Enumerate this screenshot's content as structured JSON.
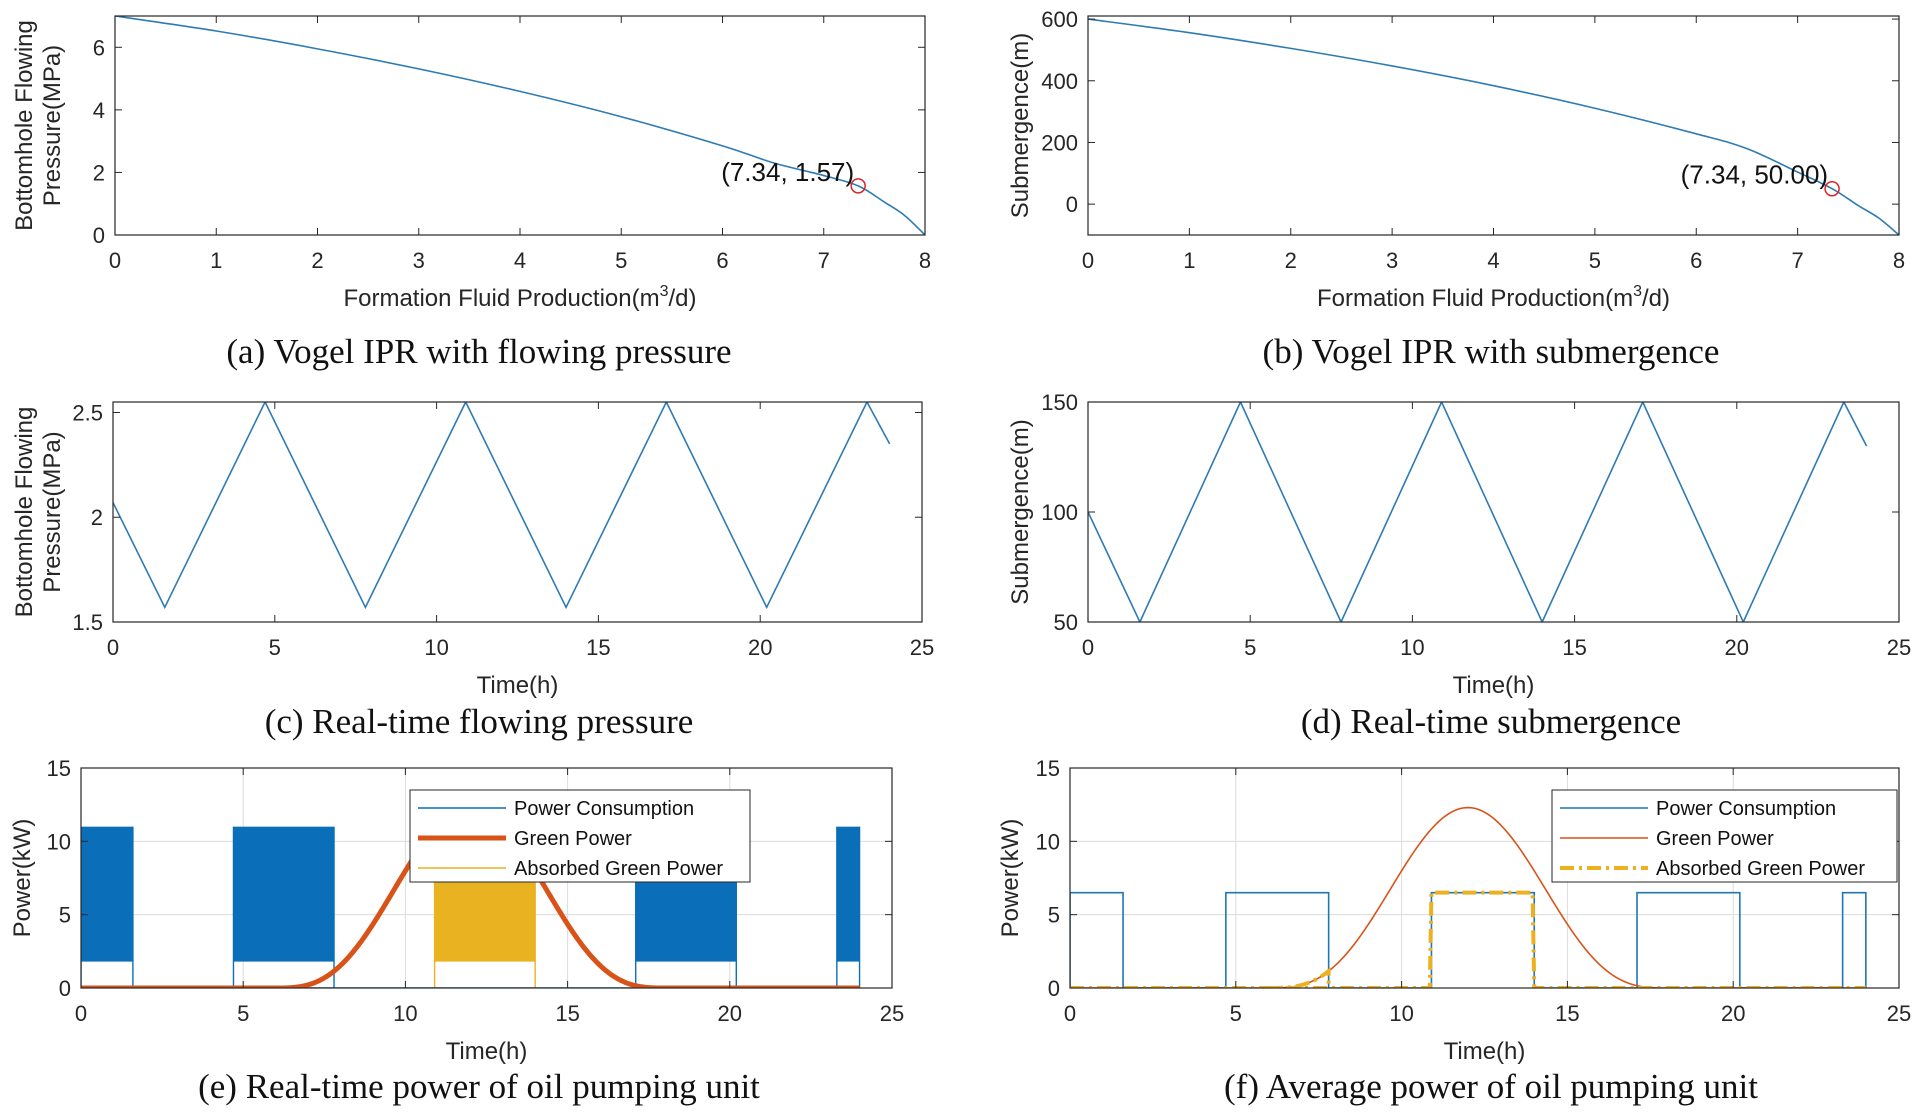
{
  "chart_data": [
    {
      "id": "a",
      "type": "line",
      "caption": "(a) Vogel IPR with flowing pressure",
      "xlabel": "Formation Fluid Production(m",
      "xlabel_sup": "3",
      "xlabel_end": "/d)",
      "ylabel": [
        "Bottomhole Flowing",
        "Pressure(MPa)"
      ],
      "xlim": [
        0,
        8
      ],
      "ylim": [
        0,
        7.0
      ],
      "xticks": [
        0,
        1,
        2,
        3,
        4,
        5,
        6,
        7,
        8
      ],
      "yticks": [
        0,
        2,
        4,
        6
      ],
      "grid": false,
      "color": "#2e7bb4",
      "series": [
        {
          "x": [
            0,
            1,
            2,
            3,
            4,
            5,
            6,
            6.5,
            7,
            7.34,
            7.6,
            7.8,
            8
          ],
          "y": [
            7.0,
            6.52,
            5.95,
            5.31,
            4.59,
            3.78,
            2.85,
            2.31,
            1.9,
            1.57,
            1.05,
            0.62,
            0
          ]
        }
      ],
      "marker": {
        "x": 7.34,
        "y": 1.57,
        "label": "(7.34, 1.57)"
      }
    },
    {
      "id": "b",
      "type": "line",
      "caption": "(b) Vogel IPR with submergence",
      "xlabel": "Formation Fluid Production(m",
      "xlabel_sup": "3",
      "xlabel_end": "/d)",
      "ylabel": [
        "Submergence(m)"
      ],
      "xlim": [
        0,
        8
      ],
      "ylim": [
        -100,
        610
      ],
      "xticks": [
        0,
        1,
        2,
        3,
        4,
        5,
        6,
        7,
        8
      ],
      "yticks": [
        0,
        200,
        400,
        600
      ],
      "grid": false,
      "color": "#2e7bb4",
      "series": [
        {
          "x": [
            0,
            1,
            2,
            3,
            4,
            5,
            6,
            6.5,
            7,
            7.34,
            7.6,
            7.8,
            8
          ],
          "y": [
            600,
            556,
            505,
            448,
            384,
            311,
            228,
            180,
            104,
            50,
            -5,
            -45,
            -100
          ]
        }
      ],
      "marker": {
        "x": 7.34,
        "y": 50.0,
        "label": "(7.34, 50.00)"
      }
    },
    {
      "id": "c",
      "type": "line",
      "caption": "(c) Real-time flowing pressure",
      "xlabel": "Time(h)",
      "ylabel": [
        "Bottomhole Flowing",
        "Pressure(MPa)"
      ],
      "xlim": [
        0,
        25
      ],
      "ylim": [
        1.5,
        2.55
      ],
      "xticks": [
        0,
        5,
        10,
        15,
        20,
        25
      ],
      "yticks": [
        1.5,
        2,
        2.5
      ],
      "grid": false,
      "color": "#2e7bb4",
      "series": [
        {
          "x": [
            0,
            1.6,
            4.7,
            7.8,
            10.9,
            14.0,
            17.1,
            20.2,
            23.3,
            24
          ],
          "y": [
            2.07,
            1.57,
            2.55,
            1.57,
            2.55,
            1.57,
            2.55,
            1.57,
            2.55,
            2.35
          ]
        }
      ]
    },
    {
      "id": "d",
      "type": "line",
      "caption": "(d) Real-time submergence",
      "xlabel": "Time(h)",
      "ylabel": [
        "Submergence(m)"
      ],
      "xlim": [
        0,
        25
      ],
      "ylim": [
        50,
        150
      ],
      "xticks": [
        0,
        5,
        10,
        15,
        20,
        25
      ],
      "yticks": [
        50,
        100,
        150
      ],
      "grid": false,
      "color": "#2e7bb4",
      "series": [
        {
          "x": [
            0,
            1.6,
            4.7,
            7.8,
            10.9,
            14.0,
            17.1,
            20.2,
            23.3,
            24
          ],
          "y": [
            100,
            50,
            150,
            50,
            150,
            50,
            150,
            50,
            150,
            130
          ]
        }
      ]
    },
    {
      "id": "e",
      "type": "area",
      "caption": "(e) Real-time power of oil pumping unit",
      "xlabel": "Time(h)",
      "ylabel": [
        "Power(kW)"
      ],
      "xlim": [
        0,
        25
      ],
      "ylim": [
        0,
        15
      ],
      "xticks": [
        0,
        5,
        10,
        15,
        20,
        25
      ],
      "yticks": [
        0,
        5,
        10,
        15
      ],
      "grid": true,
      "legend": [
        "Power Consumption",
        "Green Power",
        "Absorbed Green Power"
      ],
      "legend_position": "top-right",
      "power_on_intervals": [
        [
          0,
          1.6
        ],
        [
          4.7,
          7.8
        ],
        [
          10.9,
          14.0
        ],
        [
          17.1,
          20.2
        ],
        [
          23.3,
          24
        ]
      ],
      "power_band": [
        1.8,
        11.0
      ],
      "green_power": {
        "peak": 12.3,
        "center": 12,
        "start": 6,
        "end": 18,
        "x_end": 24
      },
      "absorbed_intervals": [
        [
          10.9,
          14.0
        ]
      ],
      "colors": {
        "consumption": "#0a6fb8",
        "green": "#d95319",
        "absorbed": "#e9b221"
      }
    },
    {
      "id": "f",
      "type": "line",
      "caption": "(f) Average power of oil pumping unit",
      "xlabel": "Time(h)",
      "ylabel": [
        "Power(kW)"
      ],
      "xlim": [
        0,
        25
      ],
      "ylim": [
        0,
        15
      ],
      "xticks": [
        0,
        5,
        10,
        15,
        20,
        25
      ],
      "yticks": [
        0,
        5,
        10,
        15
      ],
      "grid": true,
      "legend": [
        "Power Consumption",
        "Green Power",
        "Absorbed Green Power"
      ],
      "legend_position": "top-right",
      "power_on_intervals": [
        [
          0,
          1.6
        ],
        [
          4.7,
          7.8
        ],
        [
          10.9,
          14.0
        ],
        [
          17.1,
          20.2
        ],
        [
          23.3,
          24
        ]
      ],
      "average_power": 6.5,
      "green_power": {
        "peak": 12.3,
        "center": 12,
        "start": 6,
        "end": 18,
        "x_end": 24
      },
      "absorbed_intervals": [
        [
          10.9,
          14.0
        ]
      ],
      "colors": {
        "consumption": "#1f77b4",
        "green": "#d95319",
        "absorbed": "#edb120"
      }
    }
  ]
}
